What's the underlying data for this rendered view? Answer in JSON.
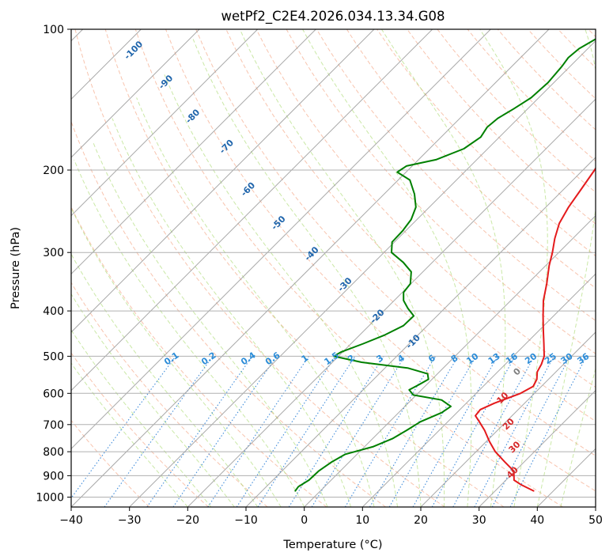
{
  "chart_data": {
    "type": "line",
    "title": "wetPf2_C2E4.2026.034.13.34.G08",
    "xlabel": "Temperature (°C)",
    "ylabel": "Pressure (hPa)",
    "xlim": [
      -40,
      50
    ],
    "ylim": [
      1050,
      100
    ],
    "y_scale": "log",
    "x_ticks": [
      -40,
      -30,
      -20,
      -10,
      0,
      10,
      20,
      30,
      40,
      50
    ],
    "y_ticks": [
      1000,
      900,
      800,
      700,
      600,
      500,
      400,
      300,
      200,
      100
    ],
    "grid": true,
    "series": [
      {
        "color": "#e41a1c",
        "points": [
          {
            "p": 970,
            "t": 36.6
          },
          {
            "p": 940,
            "t": 33.3
          },
          {
            "p": 920,
            "t": 31.4
          },
          {
            "p": 880,
            "t": 29.8
          },
          {
            "p": 840,
            "t": 26.6
          },
          {
            "p": 800,
            "t": 23.3
          },
          {
            "p": 760,
            "t": 20.5
          },
          {
            "p": 720,
            "t": 17.8
          },
          {
            "p": 690,
            "t": 15.4
          },
          {
            "p": 670,
            "t": 13.7
          },
          {
            "p": 650,
            "t": 13.5
          },
          {
            "p": 630,
            "t": 14.8
          },
          {
            "p": 600,
            "t": 17.6
          },
          {
            "p": 580,
            "t": 18.6
          },
          {
            "p": 560,
            "t": 18.0
          },
          {
            "p": 540,
            "t": 16.8
          },
          {
            "p": 520,
            "t": 16.2
          },
          {
            "p": 500,
            "t": 15.3
          },
          {
            "p": 470,
            "t": 13.1
          },
          {
            "p": 440,
            "t": 10.7
          },
          {
            "p": 410,
            "t": 8.2
          },
          {
            "p": 380,
            "t": 5.6
          },
          {
            "p": 350,
            "t": 3.3
          },
          {
            "p": 320,
            "t": 0.6
          },
          {
            "p": 300,
            "t": -1.1
          },
          {
            "p": 280,
            "t": -3.1
          },
          {
            "p": 260,
            "t": -4.9
          },
          {
            "p": 240,
            "t": -6.1
          },
          {
            "p": 220,
            "t": -7.0
          },
          {
            "p": 200,
            "t": -8.0
          },
          {
            "p": 185,
            "t": -9.0
          },
          {
            "p": 170,
            "t": -9.8
          },
          {
            "p": 160,
            "t": -9.4
          },
          {
            "p": 150,
            "t": -9.0
          },
          {
            "p": 140,
            "t": -10.2
          },
          {
            "p": 130,
            "t": -11.1
          },
          {
            "p": 120,
            "t": -11.5
          },
          {
            "p": 110,
            "t": -11.9
          },
          {
            "p": 100,
            "t": -12.4
          }
        ]
      },
      {
        "color": "#008000",
        "points": [
          {
            "p": 970,
            "t": -4.3
          },
          {
            "p": 950,
            "t": -4.5
          },
          {
            "p": 920,
            "t": -3.8
          },
          {
            "p": 880,
            "t": -3.7
          },
          {
            "p": 840,
            "t": -3.0
          },
          {
            "p": 810,
            "t": -2.0
          },
          {
            "p": 780,
            "t": 1.5
          },
          {
            "p": 750,
            "t": 3.4
          },
          {
            "p": 720,
            "t": 4.4
          },
          {
            "p": 690,
            "t": 5.3
          },
          {
            "p": 660,
            "t": 7.4
          },
          {
            "p": 640,
            "t": 7.9
          },
          {
            "p": 620,
            "t": 5.2
          },
          {
            "p": 605,
            "t": -0.5
          },
          {
            "p": 590,
            "t": -2.1
          },
          {
            "p": 575,
            "t": -1.3
          },
          {
            "p": 560,
            "t": -0.6
          },
          {
            "p": 545,
            "t": -1.7
          },
          {
            "p": 530,
            "t": -6.0
          },
          {
            "p": 515,
            "t": -15.0
          },
          {
            "p": 500,
            "t": -20.8
          },
          {
            "p": 490,
            "t": -20.3
          },
          {
            "p": 470,
            "t": -17.9
          },
          {
            "p": 450,
            "t": -15.7
          },
          {
            "p": 430,
            "t": -14.1
          },
          {
            "p": 410,
            "t": -14.0
          },
          {
            "p": 395,
            "t": -16.3
          },
          {
            "p": 380,
            "t": -18.4
          },
          {
            "p": 365,
            "t": -19.8
          },
          {
            "p": 350,
            "t": -20.1
          },
          {
            "p": 330,
            "t": -22.0
          },
          {
            "p": 315,
            "t": -25.0
          },
          {
            "p": 300,
            "t": -28.7
          },
          {
            "p": 285,
            "t": -30.4
          },
          {
            "p": 270,
            "t": -30.5
          },
          {
            "p": 255,
            "t": -31.0
          },
          {
            "p": 240,
            "t": -32.3
          },
          {
            "p": 225,
            "t": -34.8
          },
          {
            "p": 210,
            "t": -38.0
          },
          {
            "p": 202,
            "t": -41.5
          },
          {
            "p": 196,
            "t": -41.0
          },
          {
            "p": 190,
            "t": -37.0
          },
          {
            "p": 180,
            "t": -34.1
          },
          {
            "p": 170,
            "t": -33.2
          },
          {
            "p": 162,
            "t": -33.8
          },
          {
            "p": 155,
            "t": -33.5
          },
          {
            "p": 148,
            "t": -32.4
          },
          {
            "p": 140,
            "t": -31.3
          },
          {
            "p": 130,
            "t": -31.0
          },
          {
            "p": 120,
            "t": -31.4
          },
          {
            "p": 115,
            "t": -31.8
          },
          {
            "p": 110,
            "t": -31.5
          },
          {
            "p": 105,
            "t": -30.3
          },
          {
            "p": 100,
            "t": -29.2
          }
        ]
      }
    ],
    "reference_lines": {
      "isotherm_skew_deg": 45,
      "dry_adiabats": {
        "color": "#f4a582",
        "style": "dashed"
      },
      "moist_adiabats": {
        "color": "#a6d96a",
        "style": "dashed"
      },
      "mixing_ratio": {
        "color": "#1f78d4",
        "style": "dotted",
        "label_color": "#2b8cd8",
        "labels": [
          "0.1",
          "0.2",
          "0.4",
          "0.6",
          "1",
          "1.5",
          "2",
          "3",
          "4",
          "6",
          "8",
          "10",
          "13",
          "16",
          "20",
          "25",
          "30",
          "36"
        ]
      },
      "dark_temperature_labels": {
        "color": "#2166ac",
        "labels": [
          "-100",
          "-90",
          "-80",
          "-70",
          "-60",
          "-50",
          "-40",
          "-30",
          "-20",
          "-10"
        ]
      },
      "gray_label": {
        "color": "#7f7f7f",
        "label": "0"
      },
      "red_labels": {
        "color": "#d62728",
        "labels": [
          "10",
          "20",
          "30",
          "40"
        ]
      }
    }
  }
}
